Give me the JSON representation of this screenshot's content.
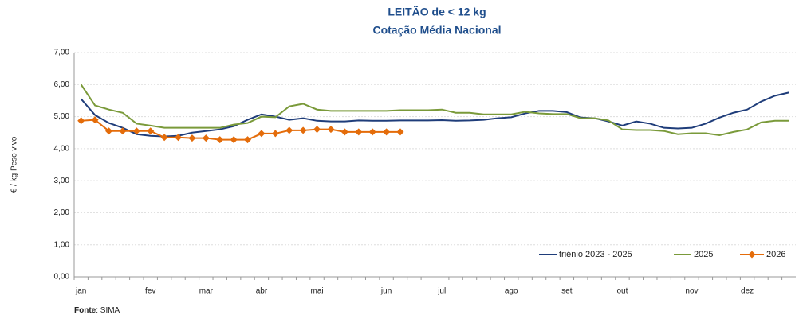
{
  "chart_data": {
    "type": "line",
    "title": [
      "LEITÃO de < 12 kg",
      "Cotação Média Nacional"
    ],
    "y_label": "€ / kg Peso vivo",
    "source": [
      "Fonte",
      ": SIMA"
    ],
    "categories": [
      "jan",
      null,
      null,
      null,
      null,
      "fev",
      null,
      null,
      null,
      "mar",
      null,
      null,
      null,
      "abr",
      null,
      null,
      null,
      "mai",
      null,
      null,
      null,
      null,
      "jun",
      null,
      null,
      null,
      "jul",
      null,
      null,
      null,
      null,
      "ago",
      null,
      null,
      null,
      "set",
      null,
      null,
      null,
      "out",
      null,
      null,
      null,
      null,
      "nov",
      null,
      null,
      null,
      "dez",
      null,
      null,
      null
    ],
    "series": [
      {
        "name": "triénio 2023 - 2025",
        "color": "#1f3d7a",
        "marker": false,
        "values": [
          5.55,
          5.05,
          4.8,
          4.65,
          4.45,
          4.4,
          4.38,
          4.4,
          4.5,
          4.55,
          4.6,
          4.7,
          4.9,
          5.07,
          5.0,
          4.9,
          4.95,
          4.87,
          4.85,
          4.85,
          4.88,
          4.87,
          4.87,
          4.88,
          4.88,
          4.88,
          4.89,
          4.87,
          4.88,
          4.9,
          4.95,
          4.98,
          5.1,
          5.18,
          5.18,
          5.14,
          4.97,
          4.95,
          4.85,
          4.72,
          4.85,
          4.78,
          4.65,
          4.63,
          4.65,
          4.78,
          4.97,
          5.12,
          5.22,
          5.47,
          5.65,
          5.75
        ]
      },
      {
        "name": "2025",
        "color": "#7a9a3a",
        "marker": false,
        "values": [
          6.0,
          5.35,
          5.22,
          5.12,
          4.78,
          4.72,
          4.65,
          4.65,
          4.65,
          4.65,
          4.65,
          4.75,
          4.8,
          5.0,
          4.98,
          5.32,
          5.4,
          5.22,
          5.18,
          5.18,
          5.18,
          5.18,
          5.18,
          5.2,
          5.2,
          5.2,
          5.22,
          5.12,
          5.12,
          5.07,
          5.07,
          5.07,
          5.15,
          5.1,
          5.08,
          5.08,
          4.95,
          4.95,
          4.88,
          4.6,
          4.58,
          4.58,
          4.55,
          4.45,
          4.48,
          4.48,
          4.42,
          4.52,
          4.6,
          4.82,
          4.87,
          4.87
        ]
      },
      {
        "name": "2026",
        "color": "#e46c0a",
        "marker": true,
        "values": [
          4.87,
          4.9,
          4.55,
          4.55,
          4.55,
          4.55,
          4.35,
          4.35,
          4.33,
          4.33,
          4.28,
          4.28,
          4.28,
          4.47,
          4.47,
          4.57,
          4.57,
          4.6,
          4.6,
          4.52,
          4.52,
          4.52,
          4.52,
          4.52,
          null,
          null,
          null,
          null,
          null,
          null,
          null,
          null,
          null,
          null,
          null,
          null,
          null,
          null,
          null,
          null,
          null,
          null,
          null,
          null,
          null,
          null,
          null,
          null,
          null,
          null,
          null,
          null
        ]
      }
    ],
    "ylim": [
      0,
      7
    ],
    "yticks": [
      {
        "value": 0,
        "label": "0,00"
      },
      {
        "value": 1,
        "label": "1,00"
      },
      {
        "value": 2,
        "label": "2,00"
      },
      {
        "value": 3,
        "label": "3,00"
      },
      {
        "value": 4,
        "label": "4,00"
      },
      {
        "value": 5,
        "label": "5,00"
      },
      {
        "value": 6,
        "label": "6,00"
      },
      {
        "value": 7,
        "label": "7,00"
      }
    ],
    "grid": true,
    "legend": "lower right"
  }
}
